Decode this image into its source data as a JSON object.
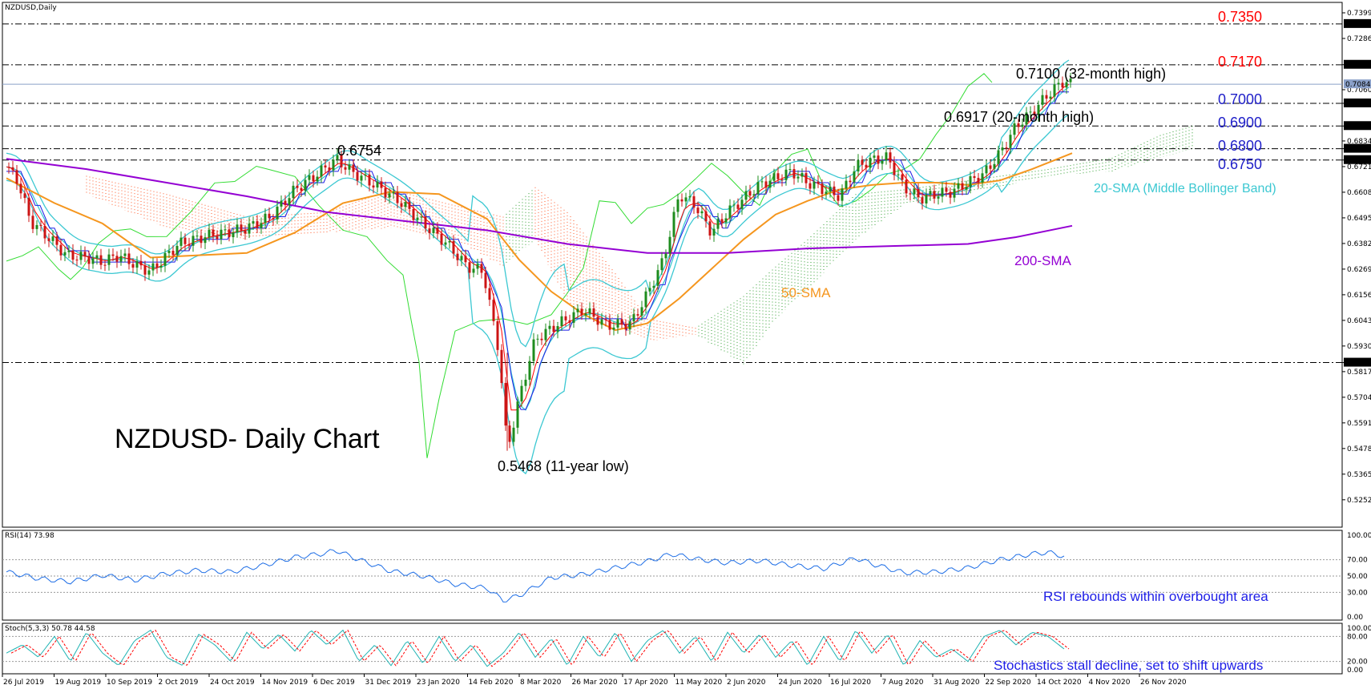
{
  "colors": {
    "red_level": "#ff0000",
    "blue_level": "#1e1ec8",
    "annotation_black": "#000000",
    "sma200": "#9400d3",
    "sma50": "#f5961e",
    "bollinger": "#3cc8d2",
    "ichimoku_cloud_bull": "#2e9e2e",
    "ichimoku_cloud_bear": "#ff5a2a",
    "chikou": "#32dc32",
    "tenkan": "#ff0000",
    "kijun": "#1e1ee6",
    "rsi_line": "#1e6ee6",
    "stoch_main": "#20b4b4",
    "stoch_signal": "#ff0000",
    "candle_bull": "#1e8c1e",
    "candle_bear": "#cc1414"
  },
  "main_panel": {
    "header": "NZDUSD,Daily",
    "chart_title": "NZDUSD- Daily Chart",
    "price_axis_labels": [
      "0.73990",
      "0.72860",
      "0.71703",
      "0.70600",
      "0.70000",
      "0.69000",
      "0.68340",
      "0.68000",
      "0.67500",
      "0.67210",
      "0.66080",
      "0.64950",
      "0.63820",
      "0.62690",
      "0.61560",
      "0.60430",
      "0.59300",
      "0.58569",
      "0.58170",
      "0.57040",
      "0.55910",
      "0.54780",
      "0.53650",
      "0.52520"
    ],
    "highlight_labels": {
      "l7350": "0.73500",
      "l7170": "0.71703",
      "lcur": "0.70841",
      "l7000": "0.70000",
      "l6900": "0.69000",
      "l6800": "0.68000",
      "l6750": "0.67500",
      "l5857": "0.58569"
    },
    "levels": {
      "l7350": "0.7350",
      "l7170": "0.7170",
      "l7000": "0.7000",
      "l6900": "0.6900",
      "l6800": "0.6800",
      "l6750": "0.6750"
    },
    "annotations": {
      "high_0754": "0.6754",
      "high_7100": "0.7100 (32-month high)",
      "high_6917": "0.6917 (20-month high)",
      "low_5468": "0.5468 (11-year low)",
      "sma20": "20-SMA (Middle Bollinger Band)",
      "sma50": "50-SMA",
      "sma200": "200-SMA"
    }
  },
  "rsi_panel": {
    "header": "RSI(14) 73.98",
    "axis_labels": [
      "100.00",
      "70.00",
      "50.00",
      "30.00",
      "0.00"
    ],
    "note": "RSI rebounds within overbought area"
  },
  "stoch_panel": {
    "header": "Stoch(5,3,3) 50.78 44.58",
    "axis_labels": [
      "100.00",
      "80.00",
      "20.00",
      "0.00"
    ],
    "note": "Stochastics stall decline, set to shift upwards"
  },
  "time_axis": [
    "26 Jul 2019",
    "19 Aug 2019",
    "10 Sep 2019",
    "2 Oct 2019",
    "24 Oct 2019",
    "14 Nov 2019",
    "6 Dec 2019",
    "31 Dec 2019",
    "23 Jan 2020",
    "14 Feb 2020",
    "8 Mar 2020",
    "26 Mar 2020",
    "17 Apr 2020",
    "11 May 2020",
    "2 Jun 2020",
    "24 Jun 2020",
    "16 Jul 2020",
    "7 Aug 2020",
    "31 Aug 2020",
    "22 Sep 2020",
    "14 Oct 2020",
    "4 Nov 2020",
    "26 Nov 2020"
  ],
  "chart_data": {
    "type": "line",
    "title": "NZDUSD- Daily Chart",
    "instrument": "NZDUSD,Daily",
    "ylim": [
      0.5215,
      0.7435
    ],
    "price_path": [
      [
        0,
        0.672
      ],
      [
        14,
        0.666
      ],
      [
        30,
        0.648
      ],
      [
        55,
        0.64
      ],
      [
        75,
        0.633
      ],
      [
        100,
        0.632
      ],
      [
        120,
        0.63
      ],
      [
        140,
        0.633
      ],
      [
        165,
        0.628
      ],
      [
        180,
        0.626
      ],
      [
        195,
        0.631
      ],
      [
        215,
        0.638
      ],
      [
        235,
        0.64
      ],
      [
        255,
        0.642
      ],
      [
        275,
        0.643
      ],
      [
        300,
        0.645
      ],
      [
        330,
        0.65
      ],
      [
        360,
        0.662
      ],
      [
        385,
        0.668
      ],
      [
        412,
        0.6754
      ],
      [
        430,
        0.67
      ],
      [
        460,
        0.664
      ],
      [
        490,
        0.657
      ],
      [
        520,
        0.647
      ],
      [
        550,
        0.638
      ],
      [
        575,
        0.628
      ],
      [
        595,
        0.626
      ],
      [
        605,
        0.608
      ],
      [
        615,
        0.59
      ],
      [
        625,
        0.5468
      ],
      [
        640,
        0.57
      ],
      [
        660,
        0.596
      ],
      [
        690,
        0.603
      ],
      [
        720,
        0.609
      ],
      [
        750,
        0.602
      ],
      [
        780,
        0.603
      ],
      [
        800,
        0.616
      ],
      [
        820,
        0.631
      ],
      [
        840,
        0.66
      ],
      [
        860,
        0.655
      ],
      [
        880,
        0.643
      ],
      [
        900,
        0.652
      ],
      [
        920,
        0.658
      ],
      [
        940,
        0.664
      ],
      [
        960,
        0.667
      ],
      [
        980,
        0.67
      ],
      [
        1000,
        0.665
      ],
      [
        1020,
        0.662
      ],
      [
        1040,
        0.659
      ],
      [
        1060,
        0.672
      ],
      [
        1080,
        0.675
      ],
      [
        1100,
        0.676
      ],
      [
        1120,
        0.663
      ],
      [
        1140,
        0.658
      ],
      [
        1160,
        0.66
      ],
      [
        1180,
        0.661
      ],
      [
        1200,
        0.665
      ],
      [
        1220,
        0.669
      ],
      [
        1240,
        0.678
      ],
      [
        1260,
        0.69
      ],
      [
        1280,
        0.696
      ],
      [
        1300,
        0.704
      ],
      [
        1320,
        0.71
      ],
      [
        1330,
        0.708
      ]
    ],
    "sma200": [
      [
        0,
        0.6755
      ],
      [
        100,
        0.671
      ],
      [
        200,
        0.665
      ],
      [
        300,
        0.659
      ],
      [
        400,
        0.652
      ],
      [
        500,
        0.648
      ],
      [
        600,
        0.644
      ],
      [
        700,
        0.638
      ],
      [
        800,
        0.634
      ],
      [
        900,
        0.634
      ],
      [
        1000,
        0.636
      ],
      [
        1100,
        0.637
      ],
      [
        1200,
        0.638
      ],
      [
        1260,
        0.641
      ],
      [
        1330,
        0.646
      ]
    ],
    "sma50": [
      [
        0,
        0.667
      ],
      [
        60,
        0.656
      ],
      [
        120,
        0.647
      ],
      [
        180,
        0.632
      ],
      [
        240,
        0.633
      ],
      [
        300,
        0.634
      ],
      [
        360,
        0.643
      ],
      [
        420,
        0.656
      ],
      [
        480,
        0.661
      ],
      [
        540,
        0.66
      ],
      [
        600,
        0.649
      ],
      [
        640,
        0.631
      ],
      [
        680,
        0.617
      ],
      [
        720,
        0.607
      ],
      [
        760,
        0.6
      ],
      [
        800,
        0.603
      ],
      [
        840,
        0.614
      ],
      [
        880,
        0.627
      ],
      [
        920,
        0.64
      ],
      [
        960,
        0.651
      ],
      [
        1000,
        0.657
      ],
      [
        1040,
        0.662
      ],
      [
        1080,
        0.664
      ],
      [
        1120,
        0.665
      ],
      [
        1160,
        0.665
      ],
      [
        1200,
        0.664
      ],
      [
        1240,
        0.666
      ],
      [
        1280,
        0.671
      ],
      [
        1330,
        0.678
      ]
    ],
    "rsi": [
      [
        0,
        55
      ],
      [
        40,
        47
      ],
      [
        80,
        43
      ],
      [
        120,
        51
      ],
      [
        160,
        45
      ],
      [
        200,
        53
      ],
      [
        240,
        57
      ],
      [
        280,
        55
      ],
      [
        320,
        63
      ],
      [
        360,
        73
      ],
      [
        400,
        78
      ],
      [
        410,
        82
      ],
      [
        440,
        70
      ],
      [
        480,
        56
      ],
      [
        520,
        50
      ],
      [
        560,
        40
      ],
      [
        600,
        35
      ],
      [
        620,
        20
      ],
      [
        640,
        26
      ],
      [
        680,
        48
      ],
      [
        720,
        52
      ],
      [
        760,
        60
      ],
      [
        800,
        68
      ],
      [
        830,
        77
      ],
      [
        860,
        71
      ],
      [
        900,
        66
      ],
      [
        940,
        69
      ],
      [
        980,
        63
      ],
      [
        1020,
        59
      ],
      [
        1060,
        72
      ],
      [
        1080,
        65
      ],
      [
        1120,
        54
      ],
      [
        1160,
        55
      ],
      [
        1200,
        60
      ],
      [
        1240,
        70
      ],
      [
        1280,
        77
      ],
      [
        1300,
        79
      ],
      [
        1320,
        74
      ]
    ],
    "stoch_k": [
      [
        0,
        40
      ],
      [
        20,
        60
      ],
      [
        40,
        30
      ],
      [
        60,
        80
      ],
      [
        80,
        20
      ],
      [
        100,
        90
      ],
      [
        120,
        40
      ],
      [
        140,
        10
      ],
      [
        160,
        70
      ],
      [
        180,
        95
      ],
      [
        200,
        30
      ],
      [
        220,
        10
      ],
      [
        240,
        85
      ],
      [
        260,
        60
      ],
      [
        280,
        20
      ],
      [
        300,
        90
      ],
      [
        320,
        50
      ],
      [
        340,
        85
      ],
      [
        360,
        45
      ],
      [
        380,
        95
      ],
      [
        400,
        60
      ],
      [
        420,
        95
      ],
      [
        440,
        20
      ],
      [
        460,
        60
      ],
      [
        480,
        10
      ],
      [
        500,
        70
      ],
      [
        520,
        15
      ],
      [
        540,
        80
      ],
      [
        560,
        20
      ],
      [
        580,
        60
      ],
      [
        600,
        8
      ],
      [
        620,
        40
      ],
      [
        640,
        90
      ],
      [
        660,
        30
      ],
      [
        680,
        75
      ],
      [
        700,
        10
      ],
      [
        720,
        80
      ],
      [
        740,
        30
      ],
      [
        760,
        90
      ],
      [
        780,
        20
      ],
      [
        800,
        70
      ],
      [
        820,
        95
      ],
      [
        840,
        40
      ],
      [
        860,
        80
      ],
      [
        880,
        20
      ],
      [
        900,
        90
      ],
      [
        920,
        40
      ],
      [
        940,
        85
      ],
      [
        960,
        30
      ],
      [
        980,
        70
      ],
      [
        1000,
        10
      ],
      [
        1020,
        80
      ],
      [
        1040,
        20
      ],
      [
        1060,
        95
      ],
      [
        1080,
        40
      ],
      [
        1100,
        85
      ],
      [
        1120,
        10
      ],
      [
        1140,
        70
      ],
      [
        1160,
        30
      ],
      [
        1180,
        50
      ],
      [
        1200,
        20
      ],
      [
        1220,
        80
      ],
      [
        1240,
        95
      ],
      [
        1260,
        60
      ],
      [
        1280,
        90
      ],
      [
        1300,
        80
      ],
      [
        1320,
        50
      ]
    ]
  }
}
